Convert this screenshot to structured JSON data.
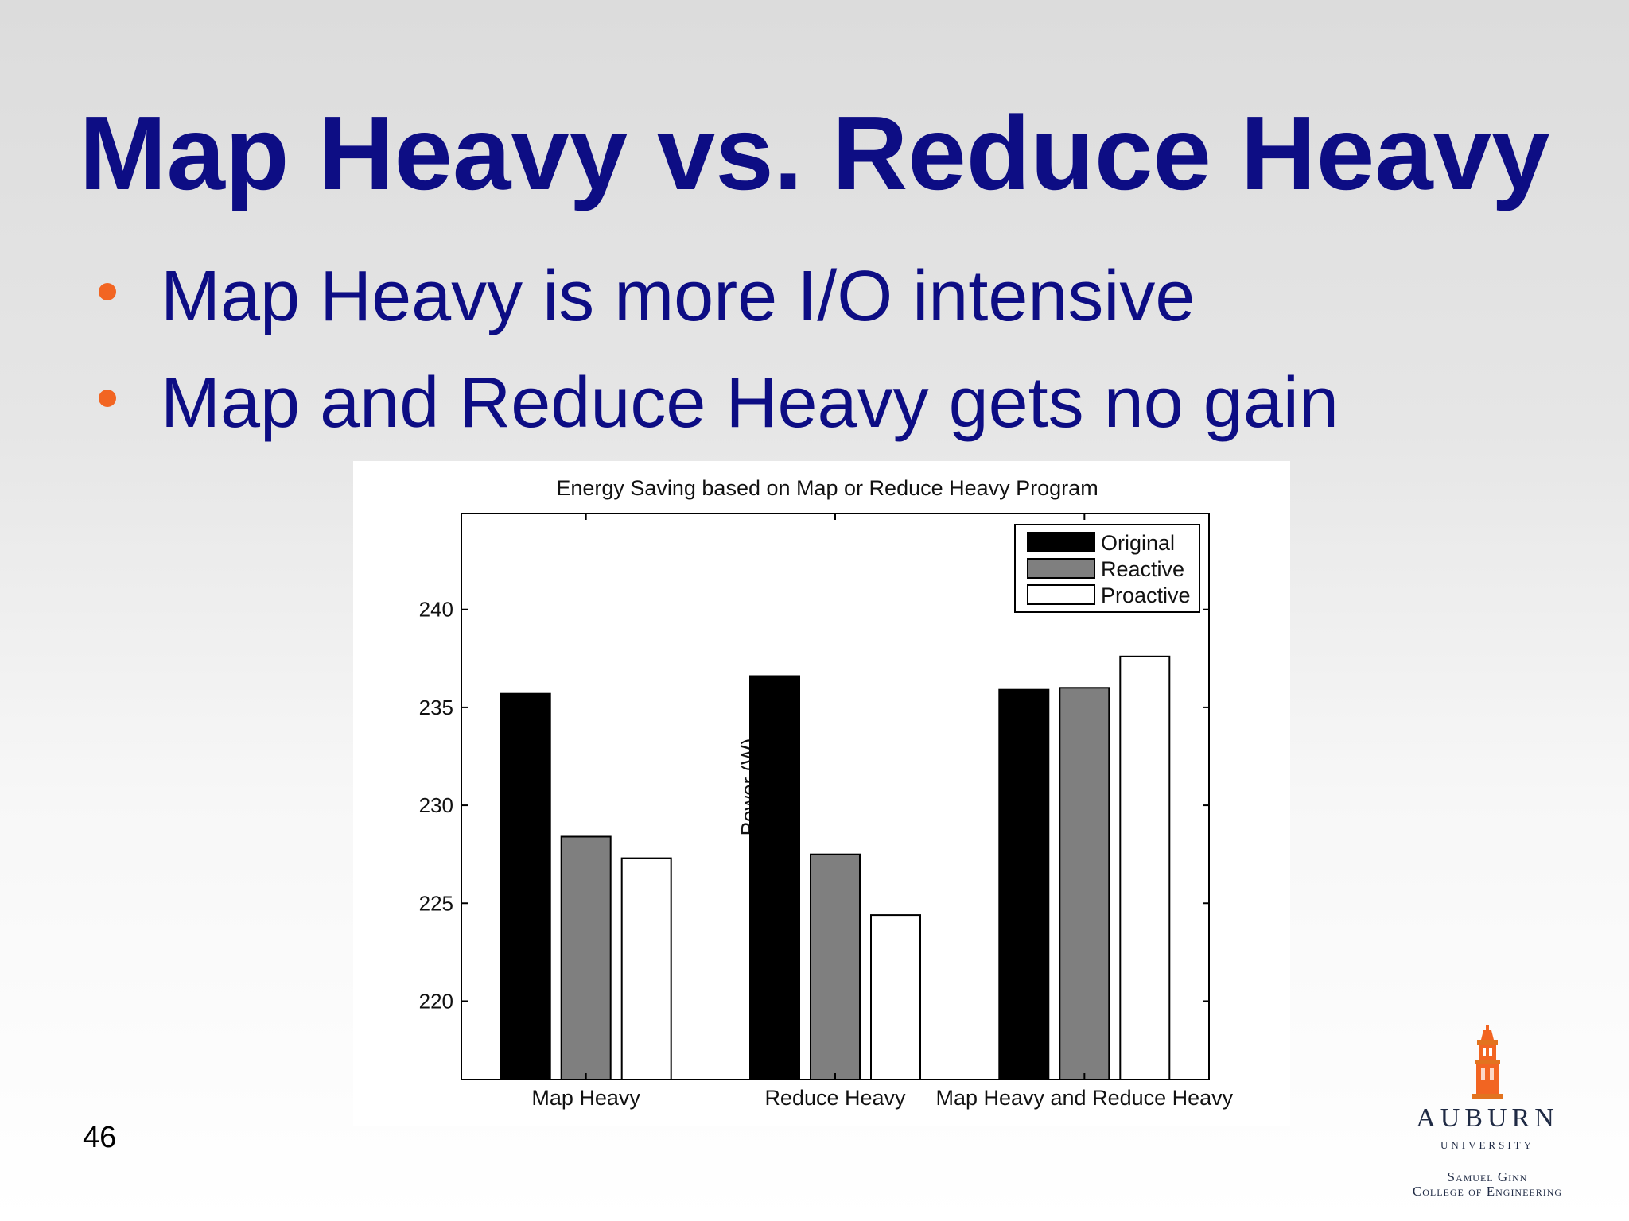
{
  "slide": {
    "title": "Map Heavy vs. Reduce Heavy",
    "bullets": [
      "Map Heavy is more I/O intensive",
      "Map and Reduce Heavy gets no gain"
    ],
    "page_number": "46",
    "bullet_color": "#f26522",
    "text_color": "#0d0d84"
  },
  "logo": {
    "name": "AUBURN",
    "subtitle": "UNIVERSITY",
    "college_line1": "Samuel Ginn",
    "college_line2": "College of Engineering",
    "color": "#1f2a44",
    "accent": "#f26522",
    "icon": "samford-tower-icon"
  },
  "chart_data": {
    "type": "bar",
    "title": "Energy Saving based on Map or Reduce Heavy Program",
    "xlabel": "",
    "ylabel": "Power (W)",
    "categories": [
      "Map Heavy",
      "Reduce Heavy",
      "Map Heavy and Reduce Heavy"
    ],
    "series": [
      {
        "name": "Original",
        "values": [
          235.7,
          236.6,
          235.9
        ],
        "color": "#000000"
      },
      {
        "name": "Reactive",
        "values": [
          228.4,
          227.5,
          236.0
        ],
        "color": "#7f7f7f"
      },
      {
        "name": "Proactive",
        "values": [
          227.3,
          224.4,
          237.6
        ],
        "color": "#ffffff"
      }
    ],
    "ylim": [
      216,
      244.9
    ],
    "yticks": [
      220,
      225,
      230,
      235,
      240
    ],
    "legend_position": "top-right",
    "grid": false
  }
}
